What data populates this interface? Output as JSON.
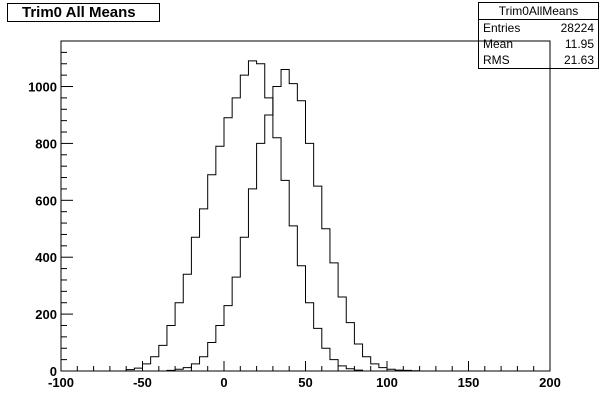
{
  "title": "Trim0 All Means",
  "stats": {
    "name": "Trim0AllMeans",
    "rows": [
      {
        "label": "Entries",
        "value": "28224"
      },
      {
        "label": "Mean",
        "value": "11.95"
      },
      {
        "label": "RMS",
        "value": "21.63"
      }
    ]
  },
  "chart_data": {
    "type": "histogram",
    "xlim": [
      -100,
      200
    ],
    "ylim": [
      0,
      1160
    ],
    "x_ticks": [
      "-100",
      "-50",
      "0",
      "50",
      "100",
      "150",
      "200"
    ],
    "y_ticks": [
      "0",
      "200",
      "400",
      "600",
      "800",
      "1000"
    ],
    "series": [
      {
        "bins": [
          [
            -65,
            0
          ],
          [
            -60,
            5
          ],
          [
            -55,
            10
          ],
          [
            -50,
            25
          ],
          [
            -45,
            50
          ],
          [
            -40,
            90
          ],
          [
            -35,
            160
          ],
          [
            -30,
            240
          ],
          [
            -25,
            340
          ],
          [
            -20,
            470
          ],
          [
            -15,
            570
          ],
          [
            -10,
            690
          ],
          [
            -5,
            790
          ],
          [
            0,
            890
          ],
          [
            5,
            960
          ],
          [
            10,
            1040
          ],
          [
            15,
            1090
          ],
          [
            20,
            1080
          ],
          [
            25,
            960
          ],
          [
            30,
            820
          ],
          [
            35,
            670
          ],
          [
            40,
            510
          ],
          [
            45,
            370
          ],
          [
            50,
            240
          ],
          [
            55,
            150
          ],
          [
            60,
            80
          ],
          [
            65,
            40
          ],
          [
            70,
            18
          ],
          [
            75,
            8
          ],
          [
            80,
            3
          ]
        ]
      },
      {
        "bins": [
          [
            -35,
            2
          ],
          [
            -30,
            6
          ],
          [
            -25,
            12
          ],
          [
            -20,
            25
          ],
          [
            -15,
            50
          ],
          [
            -10,
            100
          ],
          [
            -5,
            160
          ],
          [
            0,
            230
          ],
          [
            5,
            330
          ],
          [
            10,
            470
          ],
          [
            15,
            640
          ],
          [
            20,
            800
          ],
          [
            25,
            900
          ],
          [
            30,
            1000
          ],
          [
            35,
            1060
          ],
          [
            40,
            1010
          ],
          [
            45,
            950
          ],
          [
            50,
            800
          ],
          [
            55,
            650
          ],
          [
            60,
            500
          ],
          [
            65,
            380
          ],
          [
            70,
            260
          ],
          [
            75,
            170
          ],
          [
            80,
            95
          ],
          [
            85,
            50
          ],
          [
            90,
            25
          ],
          [
            95,
            12
          ],
          [
            100,
            6
          ],
          [
            105,
            3
          ],
          [
            110,
            2
          ],
          [
            115,
            1
          ]
        ]
      }
    ]
  }
}
